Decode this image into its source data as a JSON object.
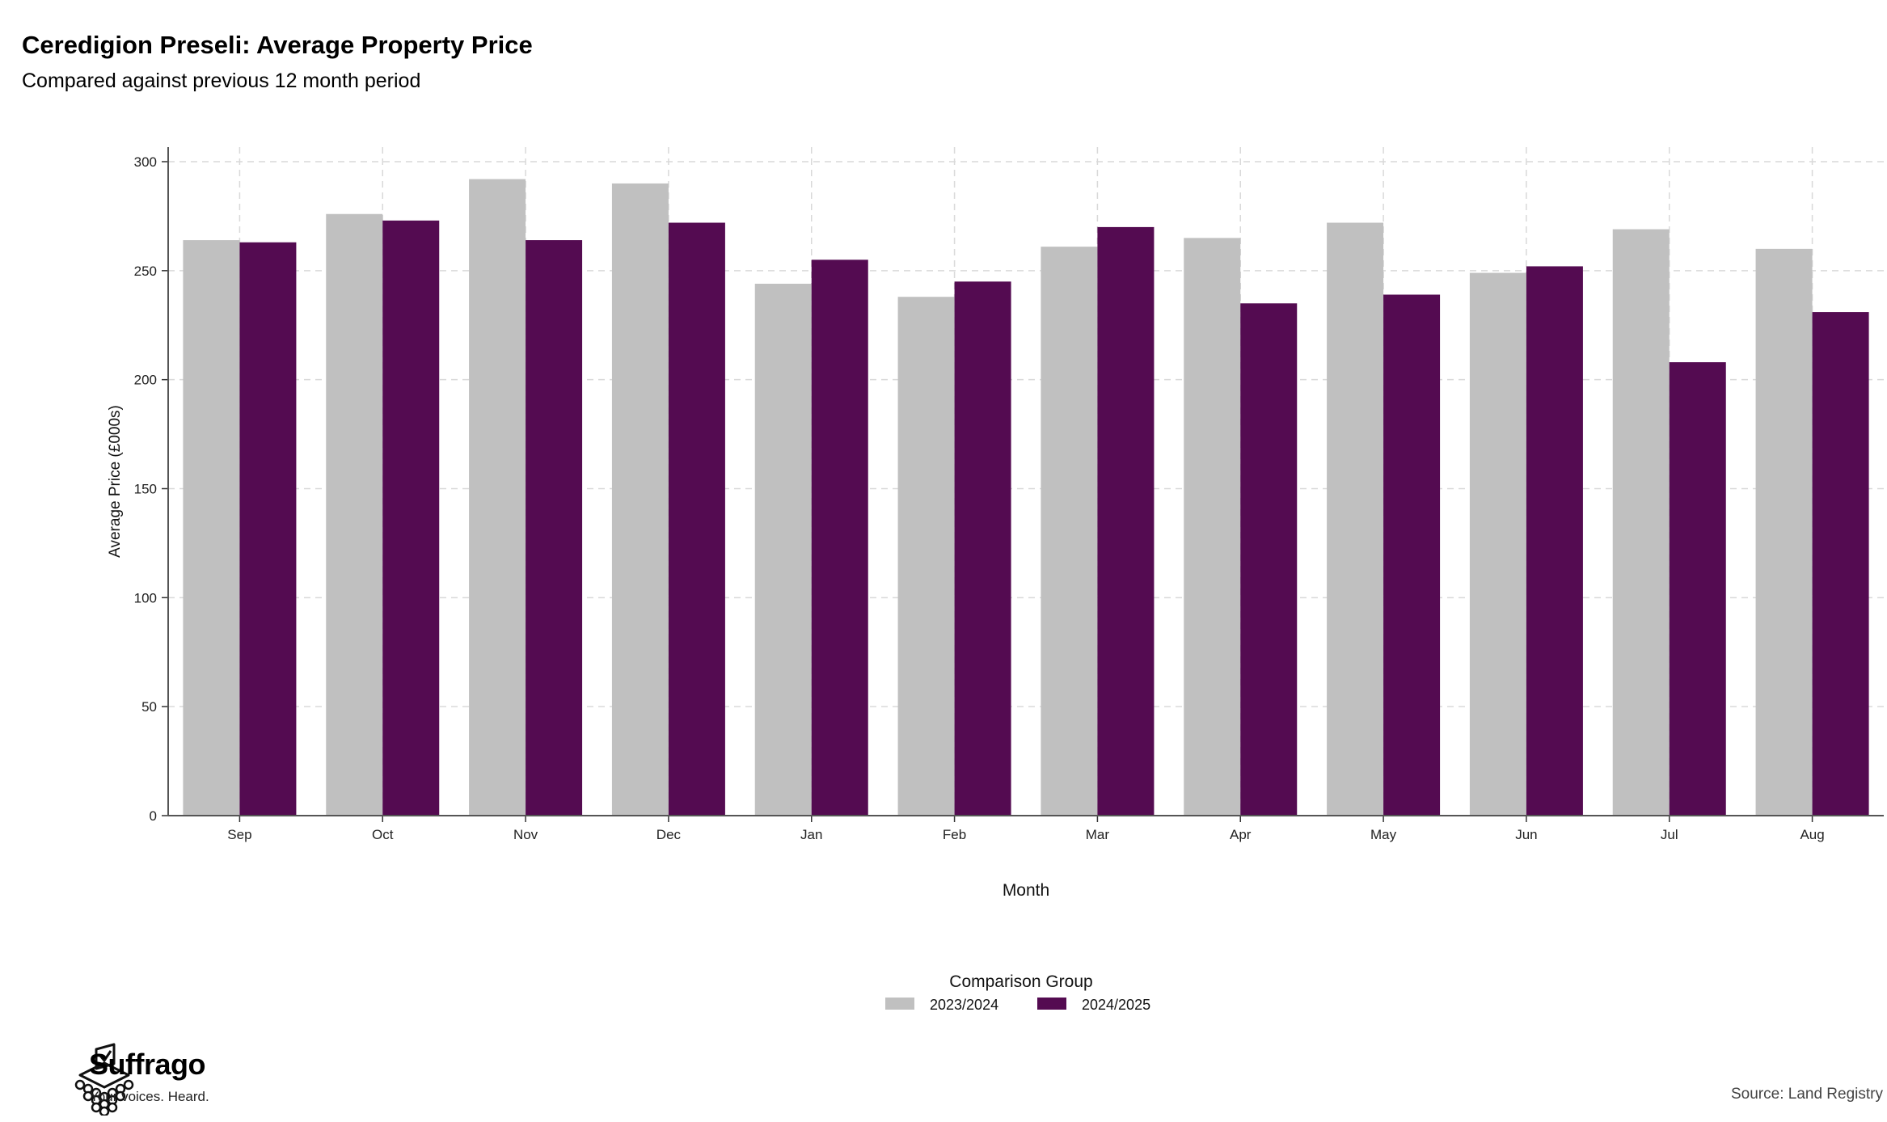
{
  "title": "Ceredigion Preseli: Average Property Price",
  "subtitle": "Compared against previous 12 month period",
  "source": "Source: Land Registry",
  "brand": {
    "name": "Suffrago",
    "tagline": "Your voices. Heard."
  },
  "chart_data": {
    "type": "bar",
    "title": "Ceredigion Preseli: Average Property Price",
    "subtitle": "Compared against previous 12 month period",
    "xlabel": "Month",
    "ylabel": "Average Price (£000s)",
    "ylim": [
      0,
      300
    ],
    "yticks": [
      0,
      50,
      100,
      150,
      200,
      250,
      300
    ],
    "grid": true,
    "legend_title": "Comparison Group",
    "legend_position": "bottom",
    "categories": [
      "Sep",
      "Oct",
      "Nov",
      "Dec",
      "Jan",
      "Feb",
      "Mar",
      "Apr",
      "May",
      "Jun",
      "Jul",
      "Aug"
    ],
    "series": [
      {
        "name": "2023/2024",
        "color": "#c0c0c0",
        "values": [
          264,
          276,
          292,
          290,
          244,
          238,
          261,
          265,
          272,
          249,
          269,
          260
        ]
      },
      {
        "name": "2024/2025",
        "color": "#540b51",
        "values": [
          263,
          273,
          264,
          272,
          255,
          245,
          270,
          235,
          239,
          252,
          208,
          231
        ]
      }
    ]
  }
}
